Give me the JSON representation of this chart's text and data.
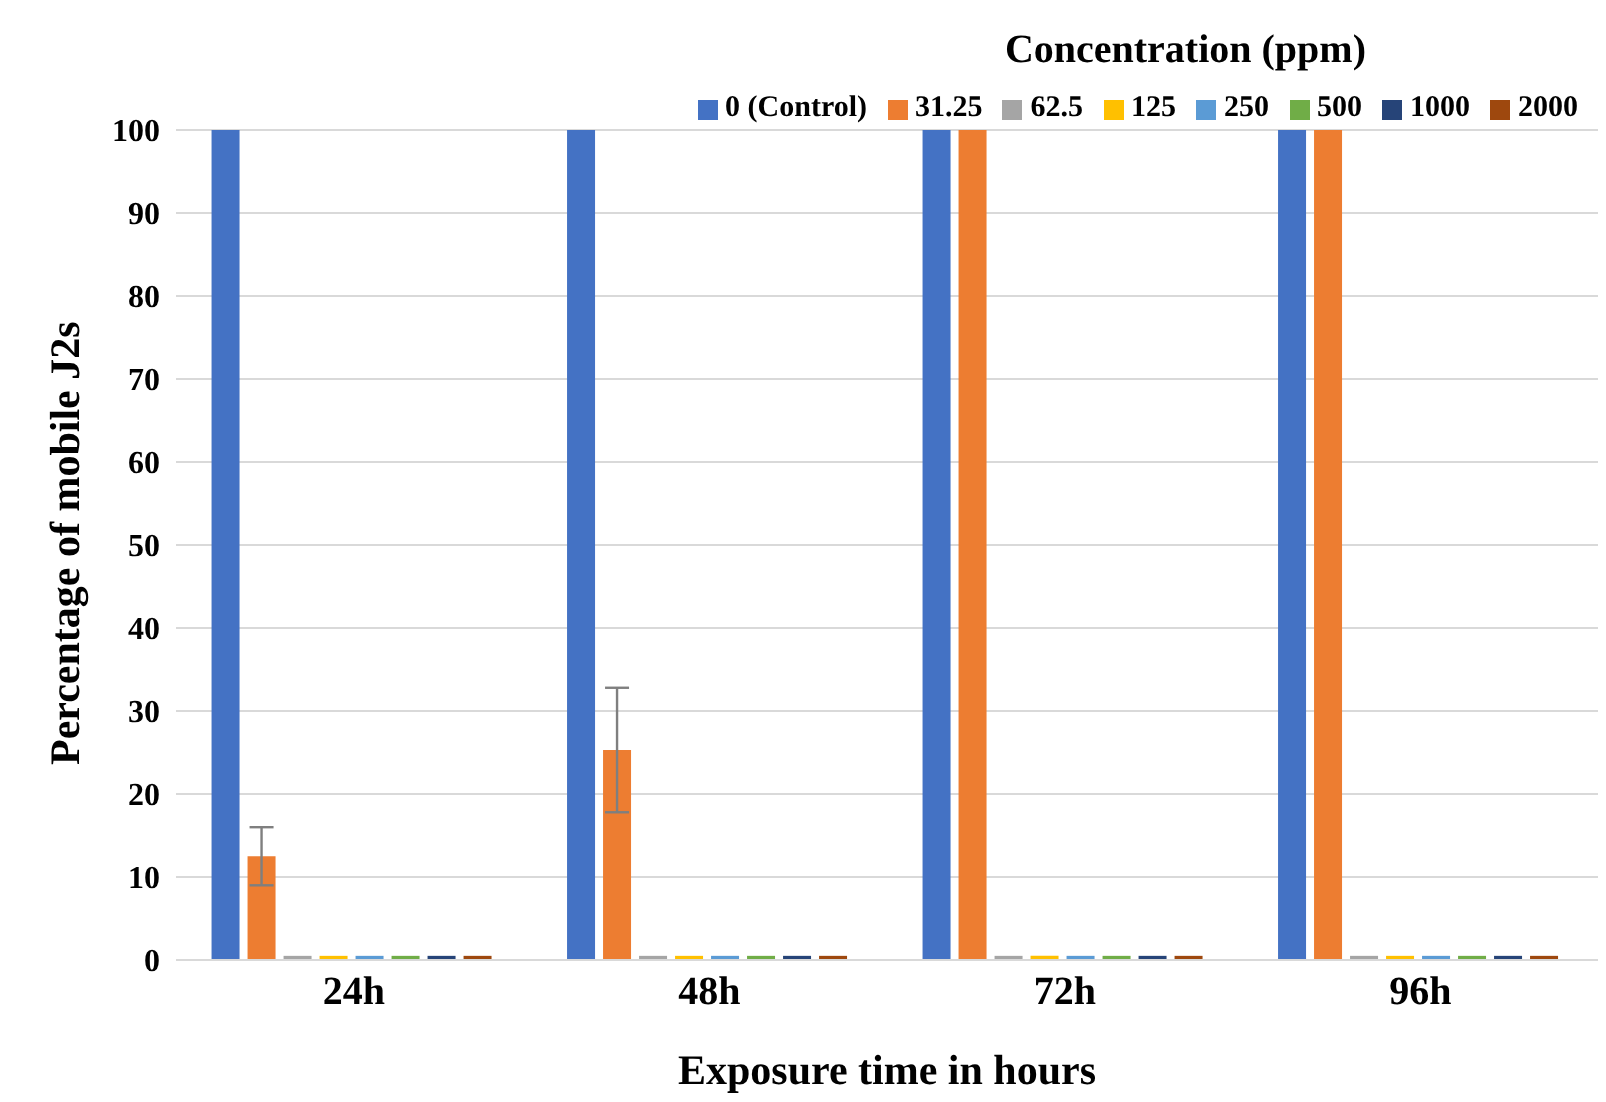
{
  "chart_data": {
    "type": "bar",
    "xlabel": "Exposure time in hours",
    "ylabel": "Percentage of mobile J2s",
    "legend_title": "Concentration (ppm)",
    "categories": [
      "24h",
      "48h",
      "72h",
      "96h"
    ],
    "series": [
      {
        "name": "0 (Control)",
        "color": "#4472c4",
        "values": [
          100,
          100,
          100,
          100
        ]
      },
      {
        "name": "31.25",
        "color": "#ed7d31",
        "values": [
          12.5,
          25.3,
          100,
          100
        ],
        "errors": [
          3.5,
          7.5,
          null,
          null
        ]
      },
      {
        "name": "62.5",
        "color": "#a5a5a5",
        "values": [
          0.5,
          0.5,
          0.5,
          0.5
        ]
      },
      {
        "name": "125",
        "color": "#ffc000",
        "values": [
          0.5,
          0.5,
          0.5,
          0.5
        ]
      },
      {
        "name": "250",
        "color": "#5b9bd5",
        "values": [
          0.5,
          0.5,
          0.5,
          0.5
        ]
      },
      {
        "name": "500",
        "color": "#70ad47",
        "values": [
          0.5,
          0.5,
          0.5,
          0.5
        ]
      },
      {
        "name": "1000",
        "color": "#264478",
        "values": [
          0.5,
          0.5,
          0.5,
          0.5
        ]
      },
      {
        "name": "2000",
        "color": "#9e480e",
        "values": [
          0.5,
          0.5,
          0.5,
          0.5
        ]
      }
    ],
    "ylim": [
      0,
      100
    ],
    "yticks": [
      0,
      10,
      20,
      30,
      40,
      50,
      60,
      70,
      80,
      90,
      100
    ],
    "grid": "y",
    "legend": "top right"
  }
}
